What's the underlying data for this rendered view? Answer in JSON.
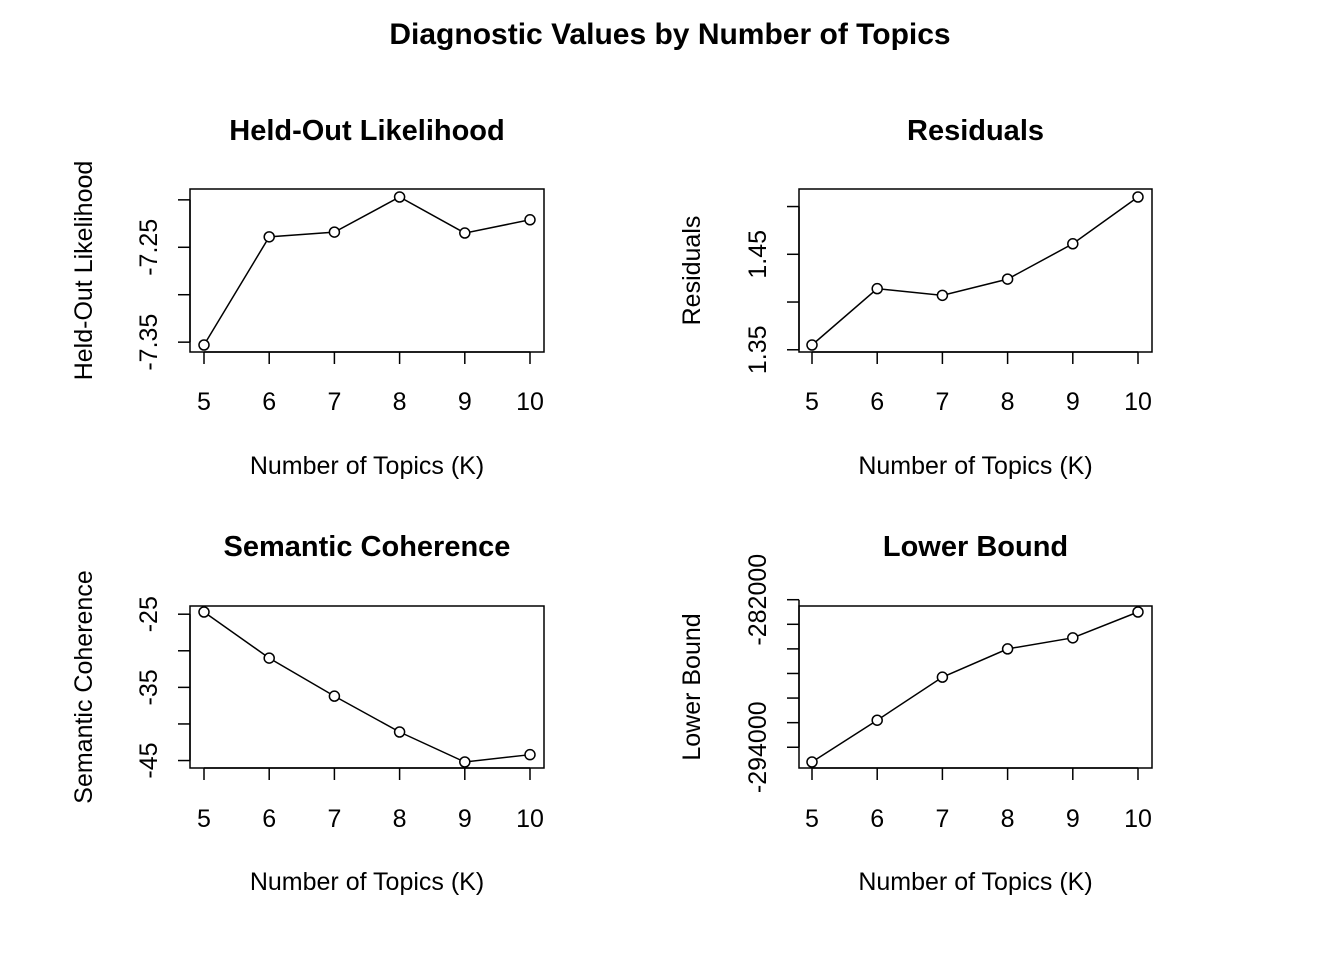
{
  "figure": {
    "title": "Diagnostic Values by Number of Topics"
  },
  "chart_data": [
    {
      "type": "line",
      "title": "Held-Out Likelihood",
      "xlabel": "Number of Topics (K)",
      "ylabel": "Held-Out Likelihood",
      "x": [
        5,
        6,
        7,
        8,
        9,
        10
      ],
      "values": [
        -7.353,
        -7.239,
        -7.234,
        -7.197,
        -7.235,
        -7.221
      ],
      "xlim": [
        5,
        10
      ],
      "ylim": [
        -7.353,
        -7.197
      ],
      "xticks": [
        "5",
        "6",
        "7",
        "8",
        "9",
        "10"
      ],
      "ytick_values": [
        -7.35,
        -7.3,
        -7.25,
        -7.2
      ],
      "ytick_labels": [
        "-7.35",
        "",
        "-7.25",
        ""
      ],
      "grid": false,
      "marker": "open-circle"
    },
    {
      "type": "line",
      "title": "Residuals",
      "xlabel": "Number of Topics (K)",
      "ylabel": "Residuals",
      "x": [
        5,
        6,
        7,
        8,
        9,
        10
      ],
      "values": [
        1.355,
        1.414,
        1.407,
        1.424,
        1.461,
        1.51
      ],
      "xlim": [
        5,
        10
      ],
      "ylim": [
        1.355,
        1.51
      ],
      "xticks": [
        "5",
        "6",
        "7",
        "8",
        "9",
        "10"
      ],
      "ytick_values": [
        1.35,
        1.4,
        1.45,
        1.5
      ],
      "ytick_labels": [
        "1.35",
        "",
        "1.45",
        ""
      ],
      "grid": false,
      "marker": "open-circle"
    },
    {
      "type": "line",
      "title": "Semantic Coherence",
      "xlabel": "Number of Topics (K)",
      "ylabel": "Semantic Coherence",
      "x": [
        5,
        6,
        7,
        8,
        9,
        10
      ],
      "values": [
        -24.7,
        -31.0,
        -36.2,
        -41.1,
        -45.2,
        -44.2
      ],
      "xlim": [
        5,
        10
      ],
      "ylim": [
        -45.2,
        -24.7
      ],
      "xticks": [
        "5",
        "6",
        "7",
        "8",
        "9",
        "10"
      ],
      "ytick_values": [
        -45,
        -40,
        -35,
        -30,
        -25
      ],
      "ytick_labels": [
        "-45",
        "",
        "-35",
        "",
        "-25"
      ],
      "grid": false,
      "marker": "open-circle"
    },
    {
      "type": "line",
      "title": "Lower Bound",
      "xlabel": "Number of Topics (K)",
      "ylabel": "Lower Bound",
      "x": [
        5,
        6,
        7,
        8,
        9,
        10
      ],
      "values": [
        -295200,
        -291800,
        -288300,
        -286000,
        -285100,
        -283000
      ],
      "xlim": [
        5,
        10
      ],
      "ylim": [
        -295200,
        -283000
      ],
      "xticks": [
        "5",
        "6",
        "7",
        "8",
        "9",
        "10"
      ],
      "ytick_values": [
        -294000,
        -292000,
        -290000,
        -288000,
        -286000,
        -284000,
        -282000
      ],
      "ytick_labels": [
        "-294000",
        "",
        "",
        "",
        "",
        "",
        "-282000"
      ],
      "grid": false,
      "marker": "open-circle"
    }
  ]
}
